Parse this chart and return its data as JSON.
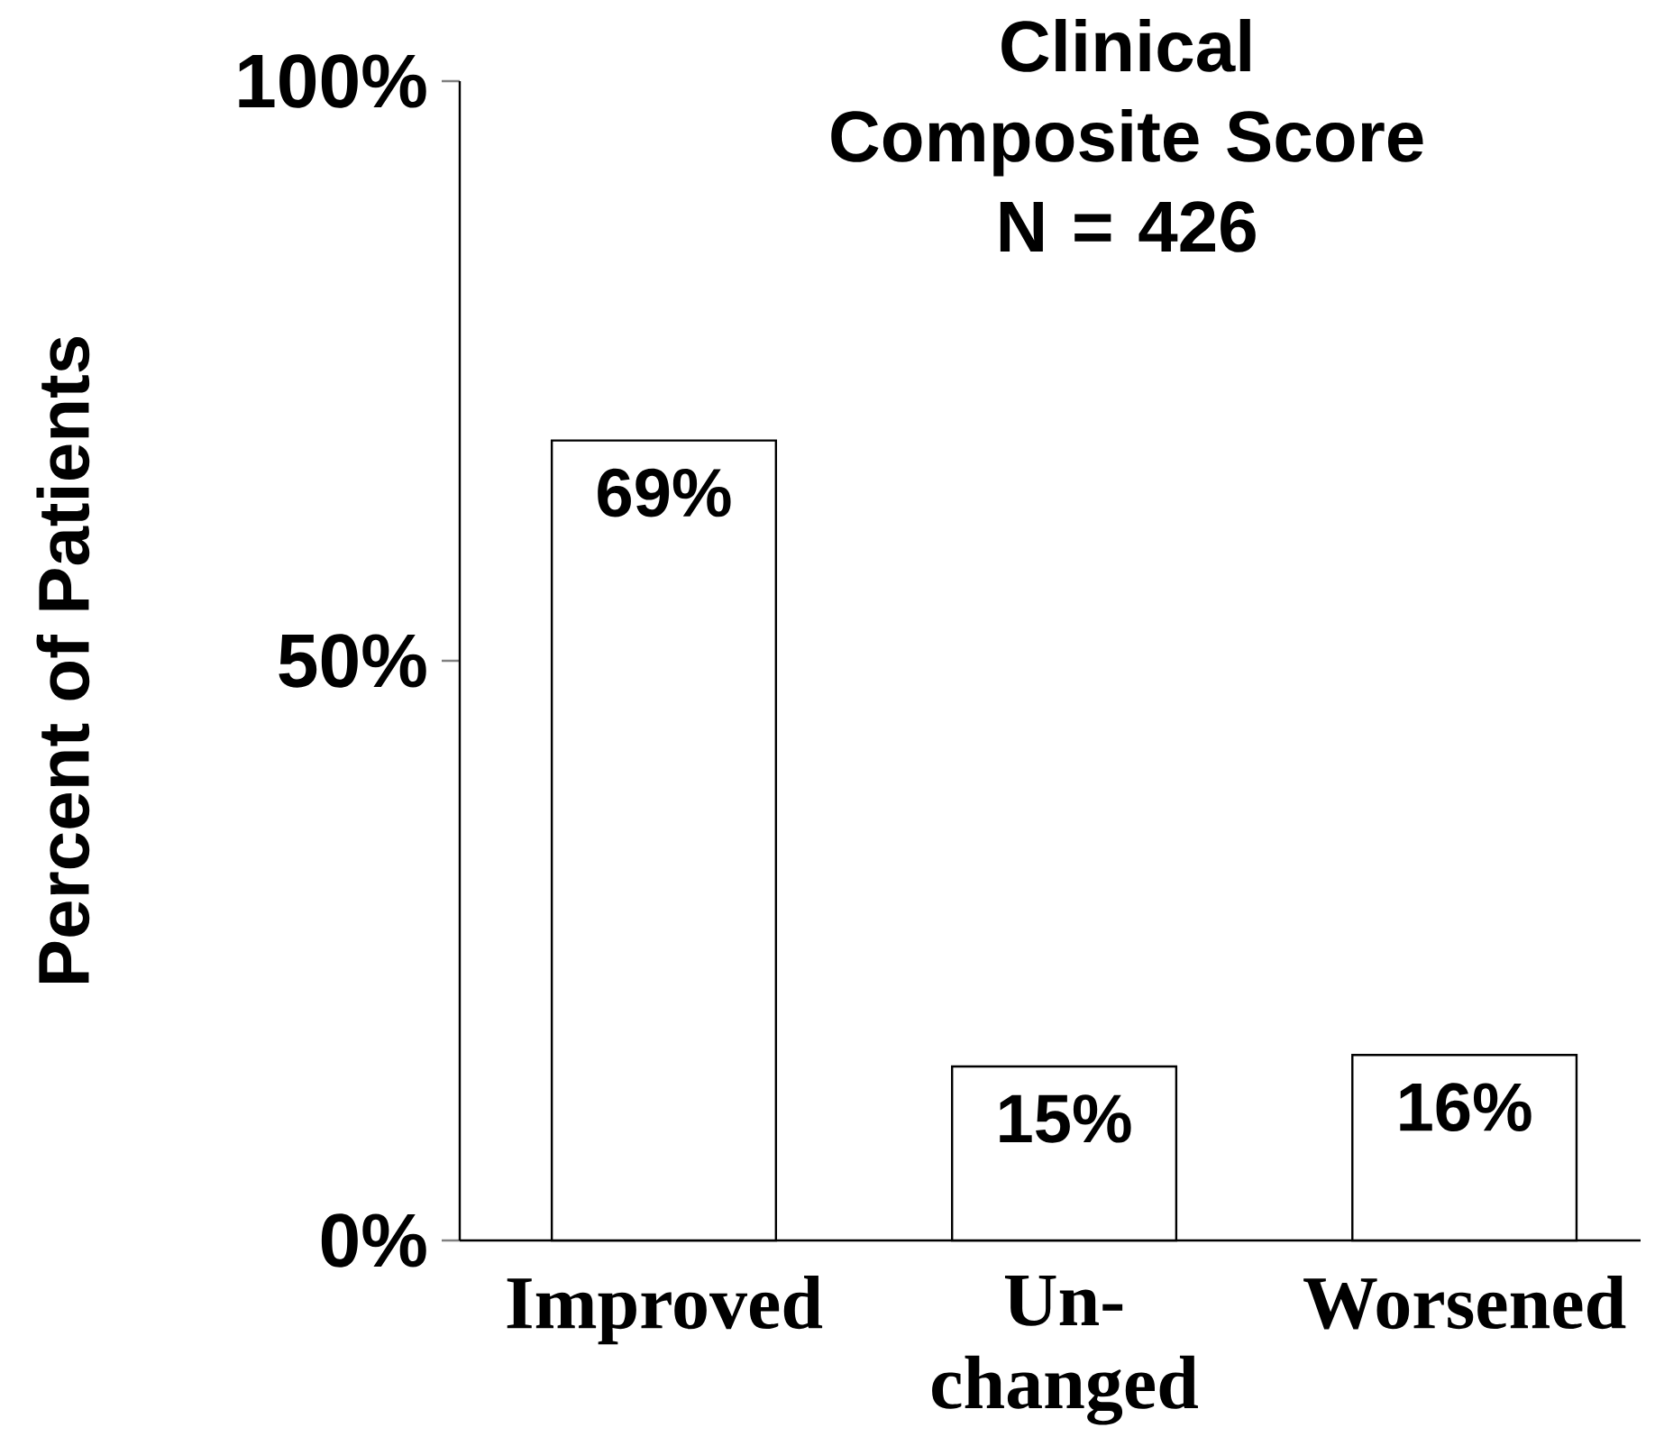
{
  "chart_data": {
    "type": "bar",
    "title": "Clinical Composite Score",
    "subtitle": "N = 426",
    "ylabel": "Percent of Patients",
    "categories": [
      "Improved",
      "Un-changed",
      "Worsened"
    ],
    "values": [
      69,
      15,
      16
    ],
    "value_labels": [
      "69%",
      "15%",
      "16%"
    ],
    "color": "#ffffff",
    "ylim": [
      0,
      100
    ],
    "yticks": [
      {
        "value": 0,
        "label": "0%"
      },
      {
        "value": 50,
        "label": "50%"
      },
      {
        "value": 100,
        "label": "100%"
      }
    ]
  }
}
